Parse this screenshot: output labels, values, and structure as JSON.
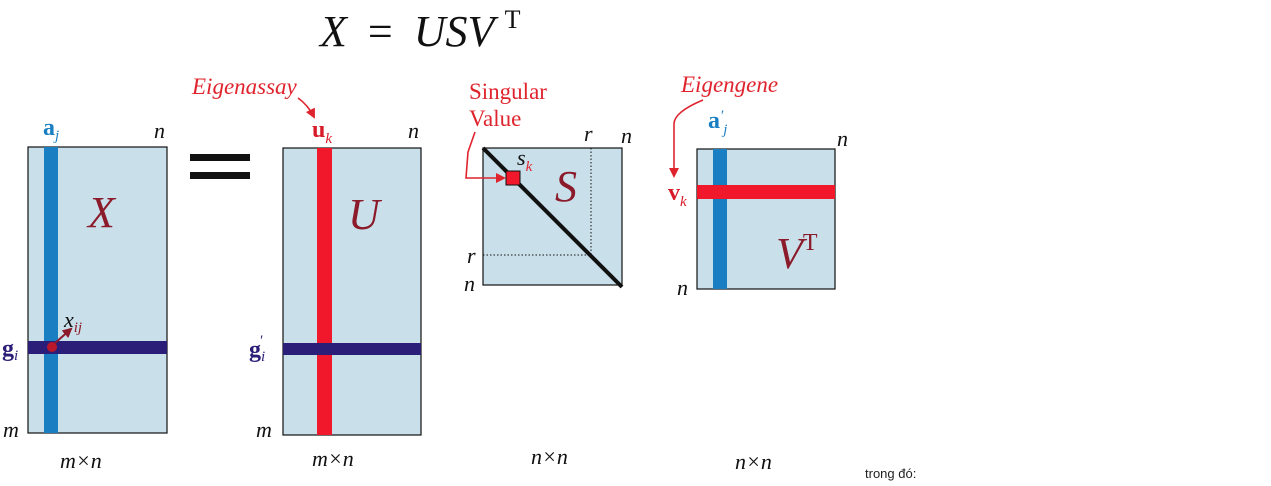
{
  "equation": {
    "lhs": "X",
    "equals": "=",
    "rhs": "USV",
    "superscript": "T"
  },
  "colors": {
    "matrix_fill": "#c9dfea",
    "column_blue": "#1a7fc2",
    "row_navy": "#2b1e78",
    "highlight_red": "#f0182a",
    "annotation_red": "#e0242e",
    "letter_maroon": "#8b1a2a"
  },
  "matrices": {
    "X": {
      "name": "X",
      "col_vector": "a",
      "col_sub": "j",
      "row_vector": "g",
      "row_sub": "i",
      "element": "x",
      "element_sub": "ij",
      "cols": "n",
      "rows": "m",
      "dims": "m×n"
    },
    "U": {
      "name": "U",
      "col_vector": "u",
      "col_sub": "k",
      "row_vector": "g",
      "row_sub": "i",
      "row_prime": "′",
      "cols": "n",
      "rows": "m",
      "dims": "m×n"
    },
    "S": {
      "name": "S",
      "element": "s",
      "element_sub": "k",
      "rank": "r",
      "cols": "n",
      "rows": "n",
      "dims": "n×n"
    },
    "VT": {
      "name": "V",
      "superscript": "T",
      "col_vector": "a",
      "col_prime": "′",
      "col_sub": "j",
      "row_vector": "v",
      "row_sub": "k",
      "cols": "n",
      "rows": "n",
      "dims": "n×n"
    }
  },
  "equals_sign": "=",
  "annotations": {
    "eigenassay": "Eigenassay",
    "singular_line1": "Singular",
    "singular_line2": "Value",
    "eigengene": "Eigengene"
  },
  "caption": "trong đó:"
}
